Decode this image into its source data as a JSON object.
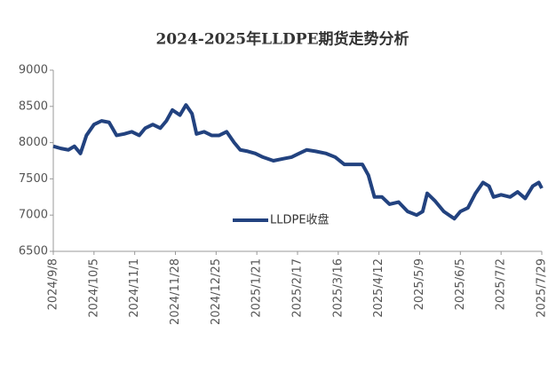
{
  "chart_data": {
    "type": "line",
    "title": "2024-2025年LLDPE期货走势分析",
    "x": [
      "2024/9/8",
      "2024/9/13",
      "2024/9/18",
      "2024/9/22",
      "2024/9/26",
      "2024/9/30",
      "2024/10/5",
      "2024/10/10",
      "2024/10/15",
      "2024/10/20",
      "2024/10/25",
      "2024/10/30",
      "2024/11/4",
      "2024/11/8",
      "2024/11/13",
      "2024/11/18",
      "2024/11/22",
      "2024/11/26",
      "2024/12/1",
      "2024/12/5",
      "2024/12/9",
      "2024/12/12",
      "2024/12/17",
      "2024/12/22",
      "2024/12/27",
      "2025/1/1",
      "2025/1/6",
      "2025/1/10",
      "2025/1/15",
      "2025/1/20",
      "2025/1/25",
      "2025/2/1",
      "2025/2/8",
      "2025/2/13",
      "2025/2/18",
      "2025/2/23",
      "2025/3/1",
      "2025/3/8",
      "2025/3/14",
      "2025/3/20",
      "2025/3/26",
      "2025/4/1",
      "2025/4/5",
      "2025/4/9",
      "2025/4/14",
      "2025/4/19",
      "2025/4/25",
      "2025/5/1",
      "2025/5/7",
      "2025/5/11",
      "2025/5/14",
      "2025/5/19",
      "2025/5/25",
      "2025/6/1",
      "2025/6/5",
      "2025/6/10",
      "2025/6/15",
      "2025/6/20",
      "2025/6/24",
      "2025/6/27",
      "2025/7/2",
      "2025/7/8",
      "2025/7/13",
      "2025/7/18",
      "2025/7/23",
      "2025/7/27",
      "2025/7/29"
    ],
    "series": [
      {
        "name": "LLDPE收盘",
        "color": "#22427f",
        "values": [
          7950,
          7920,
          7900,
          7950,
          7850,
          8100,
          8250,
          8300,
          8280,
          8100,
          8120,
          8150,
          8100,
          8200,
          8250,
          8200,
          8300,
          8450,
          8380,
          8520,
          8400,
          8120,
          8150,
          8100,
          8100,
          8150,
          8000,
          7900,
          7880,
          7850,
          7800,
          7750,
          7780,
          7800,
          7850,
          7900,
          7880,
          7850,
          7800,
          7700,
          7700,
          7700,
          7550,
          7250,
          7250,
          7150,
          7180,
          7050,
          7000,
          7050,
          7300,
          7200,
          7050,
          6950,
          7050,
          7100,
          7300,
          7450,
          7400,
          7250,
          7280,
          7250,
          7320,
          7230,
          7400,
          7450,
          7370
        ]
      }
    ],
    "xticks": [
      "2024/9/8",
      "2024/10/5",
      "2024/11/1",
      "2024/11/28",
      "2024/12/25",
      "2025/1/21",
      "2025/2/17",
      "2025/3/16",
      "2025/4/12",
      "2025/5/9",
      "2025/6/5",
      "2025/7/2",
      "2025/7/29"
    ],
    "ylim": [
      6500,
      9000
    ],
    "yticks": [
      6500,
      7000,
      7500,
      8000,
      8500,
      9000
    ]
  }
}
